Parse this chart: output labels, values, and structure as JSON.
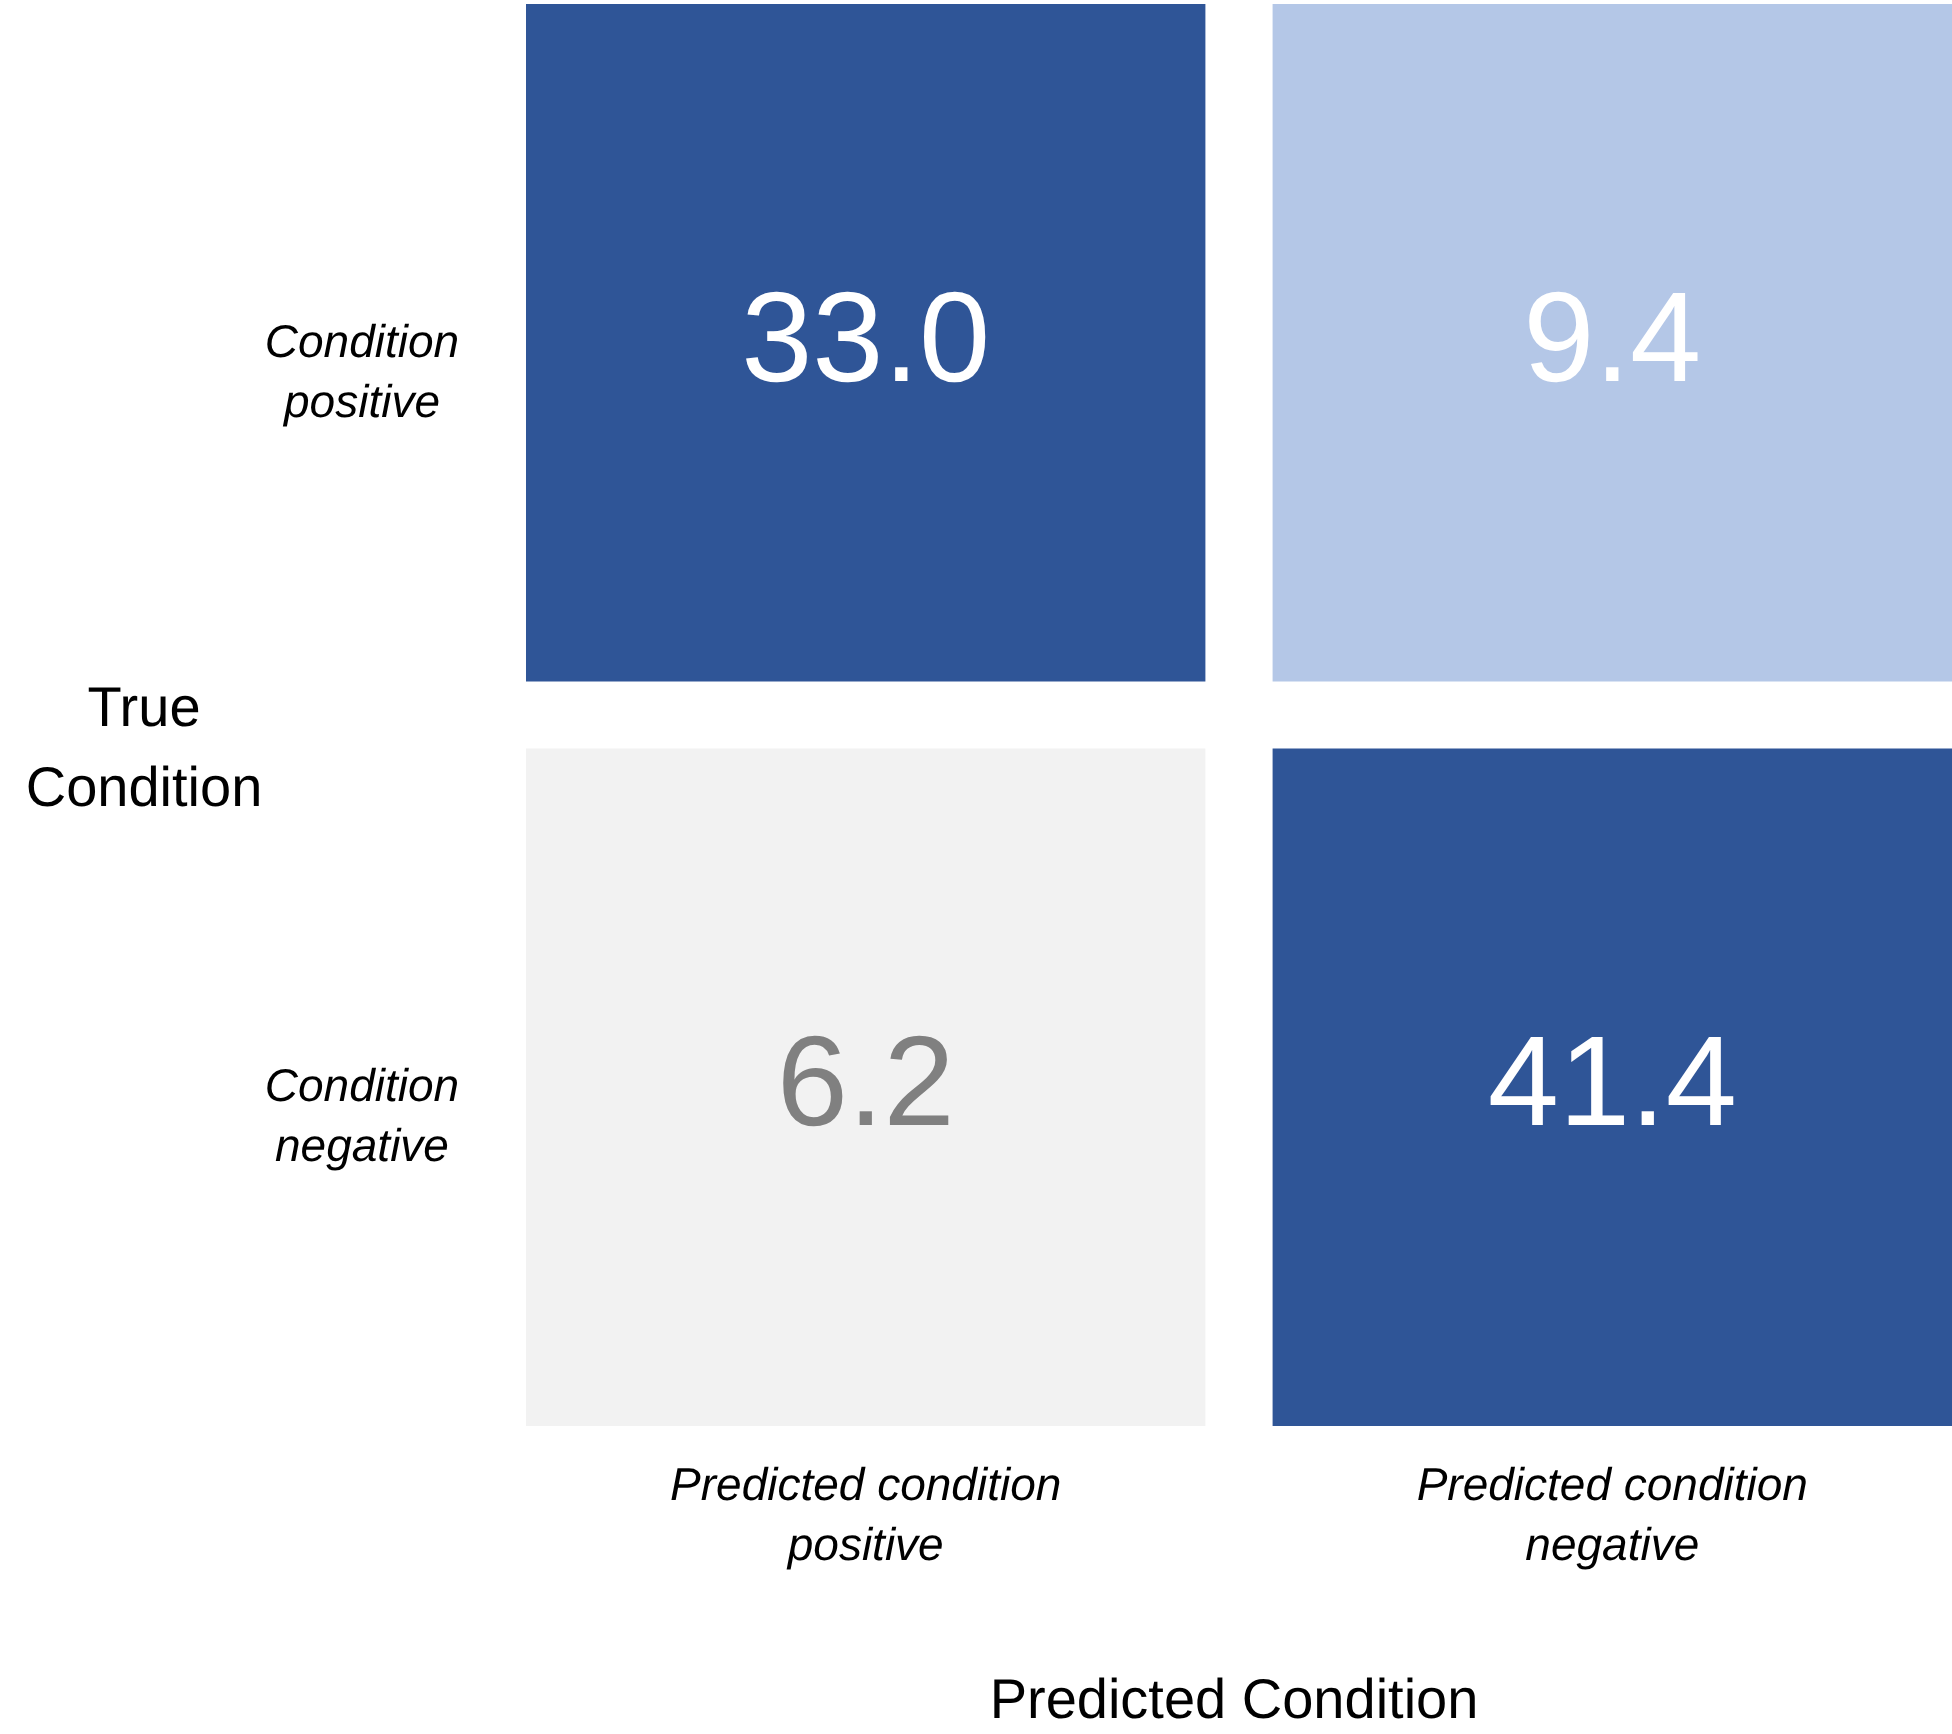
{
  "chart_data": {
    "type": "heatmap",
    "categories": [
      "Predicted condition\npositive",
      "Predicted condition\nnegative"
    ],
    "y_categories": [
      "Condition\npositive",
      "Condition\nnegative"
    ],
    "cells": [
      [
        33.0,
        9.4
      ],
      [
        6.2,
        41.4
      ]
    ],
    "colors": [
      [
        "#2f5597",
        "#b4c7e7"
      ],
      [
        "#f2f2f2",
        "#2f5597"
      ]
    ],
    "cell_labels": [
      [
        "33.0",
        "9.4"
      ],
      [
        "6.2",
        "41.4"
      ]
    ],
    "data_labels": true,
    "xlabel": "Predicted Condition",
    "ylabel": "True\nCondition"
  }
}
